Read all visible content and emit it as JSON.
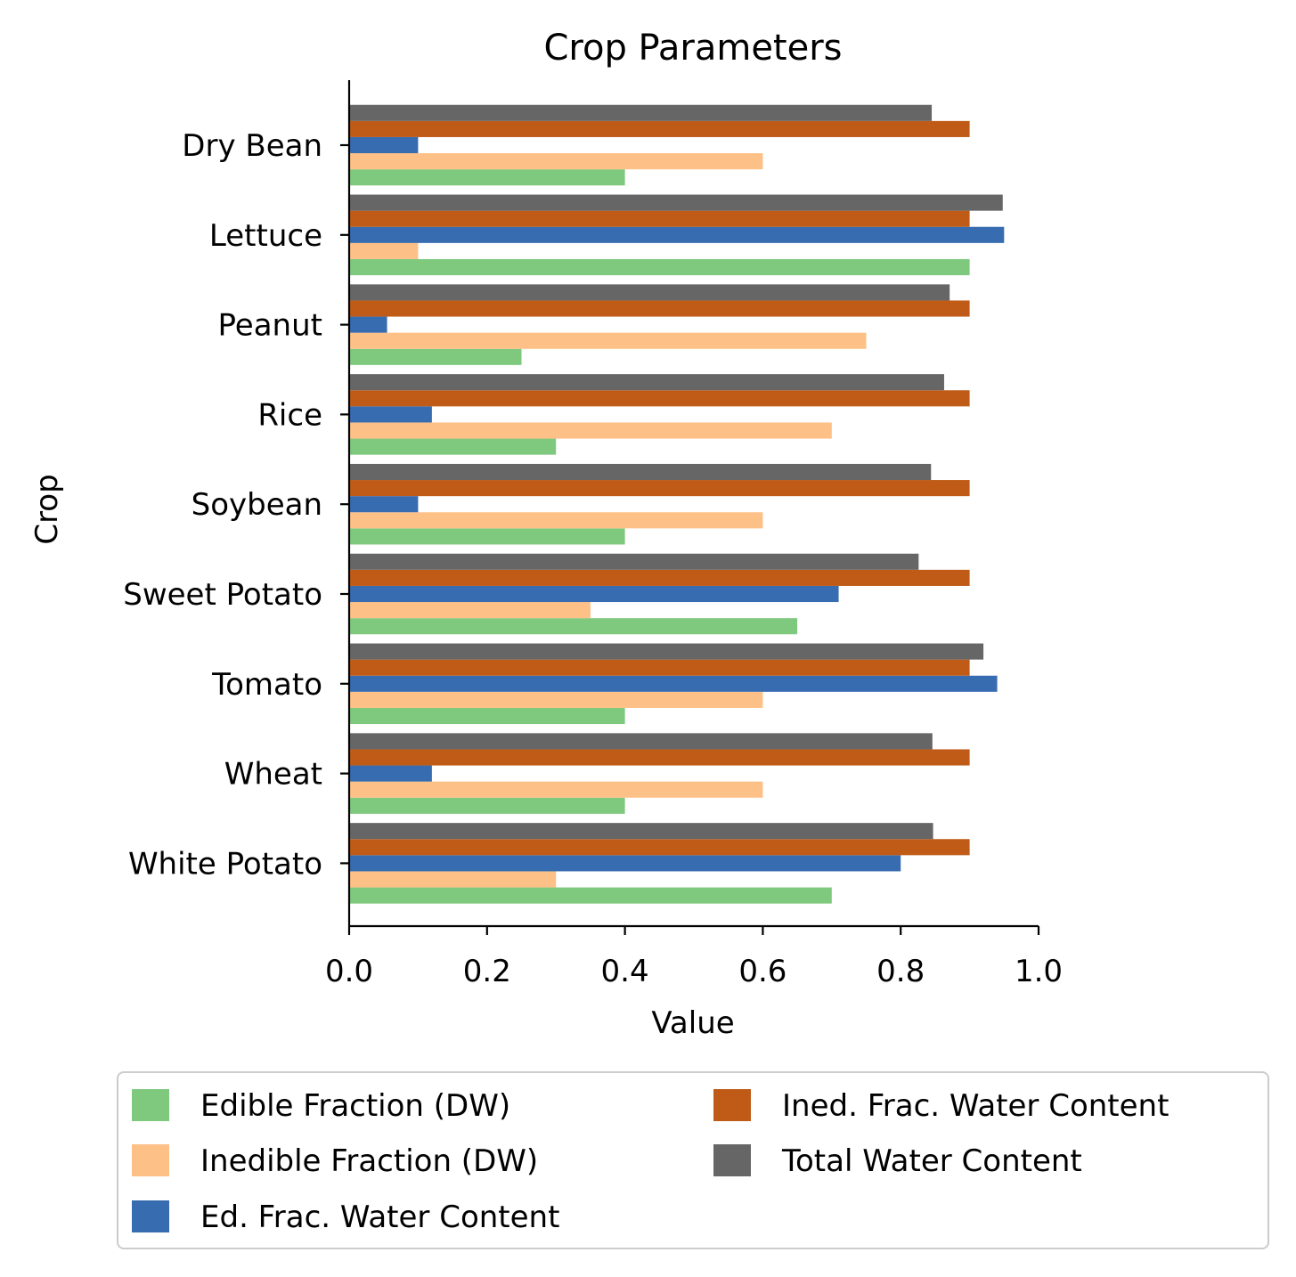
{
  "chart_data": {
    "type": "bar",
    "orientation": "horizontal",
    "title": "Crop Parameters",
    "xlabel": "Value",
    "ylabel": "Crop",
    "xlim": [
      0,
      1.0
    ],
    "xticks": [
      "0.0",
      "0.2",
      "0.4",
      "0.6",
      "0.8",
      "1.0"
    ],
    "grid": false,
    "legend_position": "bottom",
    "categories": [
      "Dry Bean",
      "Lettuce",
      "Peanut",
      "Rice",
      "Soybean",
      "Sweet Potato",
      "Tomato",
      "Wheat",
      "White Potato"
    ],
    "series": [
      {
        "name": "Edible Fraction (DW)",
        "color": "#7fc97f",
        "values": [
          0.4,
          0.9,
          0.25,
          0.3,
          0.4,
          0.65,
          0.4,
          0.4,
          0.7
        ]
      },
      {
        "name": "Inedible Fraction (DW)",
        "color": "#fdc086",
        "values": [
          0.6,
          0.1,
          0.75,
          0.7,
          0.6,
          0.35,
          0.6,
          0.6,
          0.3
        ]
      },
      {
        "name": "Ed. Frac. Water Content",
        "color": "#386cb0",
        "values": [
          0.1,
          0.95,
          0.055,
          0.12,
          0.1,
          0.71,
          0.94,
          0.12,
          0.8
        ]
      },
      {
        "name": "Ined. Frac. Water Content",
        "color": "#bf5b17",
        "values": [
          0.9,
          0.9,
          0.9,
          0.9,
          0.9,
          0.9,
          0.9,
          0.9,
          0.9
        ]
      },
      {
        "name": "Total Water Content",
        "color": "#666666",
        "values": [
          0.845,
          0.948,
          0.871,
          0.863,
          0.844,
          0.826,
          0.92,
          0.846,
          0.847
        ]
      }
    ]
  }
}
